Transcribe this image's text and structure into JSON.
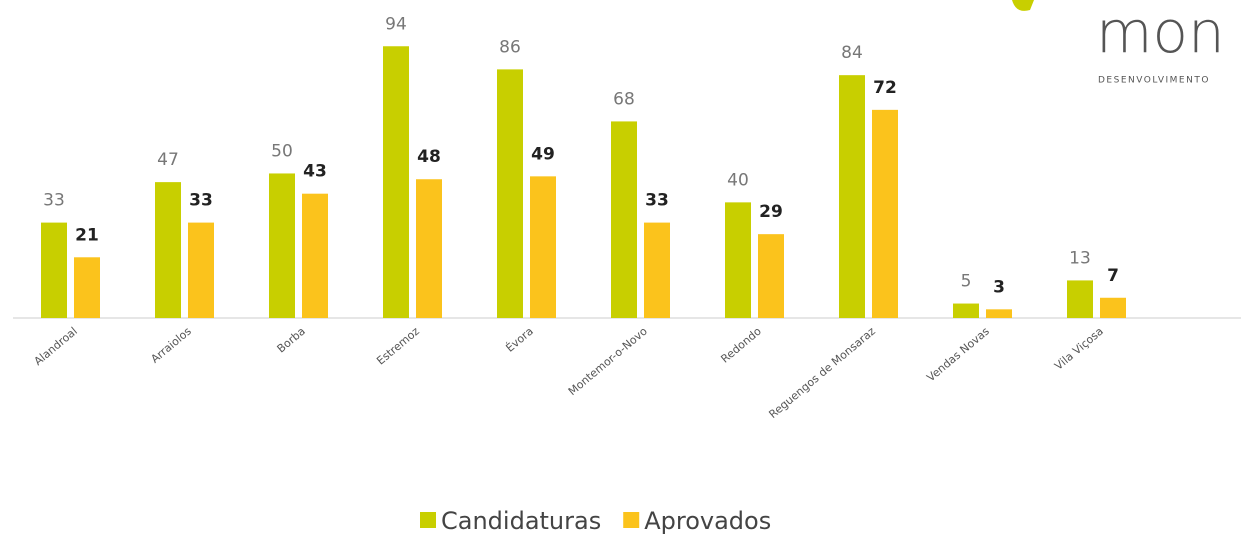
{
  "chart_data": {
    "type": "bar",
    "categories": [
      "Alandroal",
      "Arraiolos",
      "Borba",
      "Estremoz",
      "Évora",
      "Montemor-o-Novo",
      "Redondo",
      "Reguengos de Monsaraz",
      "Vendas Novas",
      "Vila Viçosa"
    ],
    "series": [
      {
        "name": "Candidaturas",
        "color": "#c8cf00",
        "values": [
          33,
          47,
          50,
          94,
          86,
          68,
          40,
          84,
          5,
          13
        ]
      },
      {
        "name": "Aprovados",
        "color": "#fbc31c",
        "values": [
          21,
          33,
          43,
          48,
          49,
          33,
          29,
          72,
          3,
          7
        ]
      }
    ],
    "ylim": [
      0,
      110
    ],
    "legend": "bottom"
  },
  "logo": {
    "name": "mon",
    "tagline": "DESENVOLVIMENTO"
  }
}
